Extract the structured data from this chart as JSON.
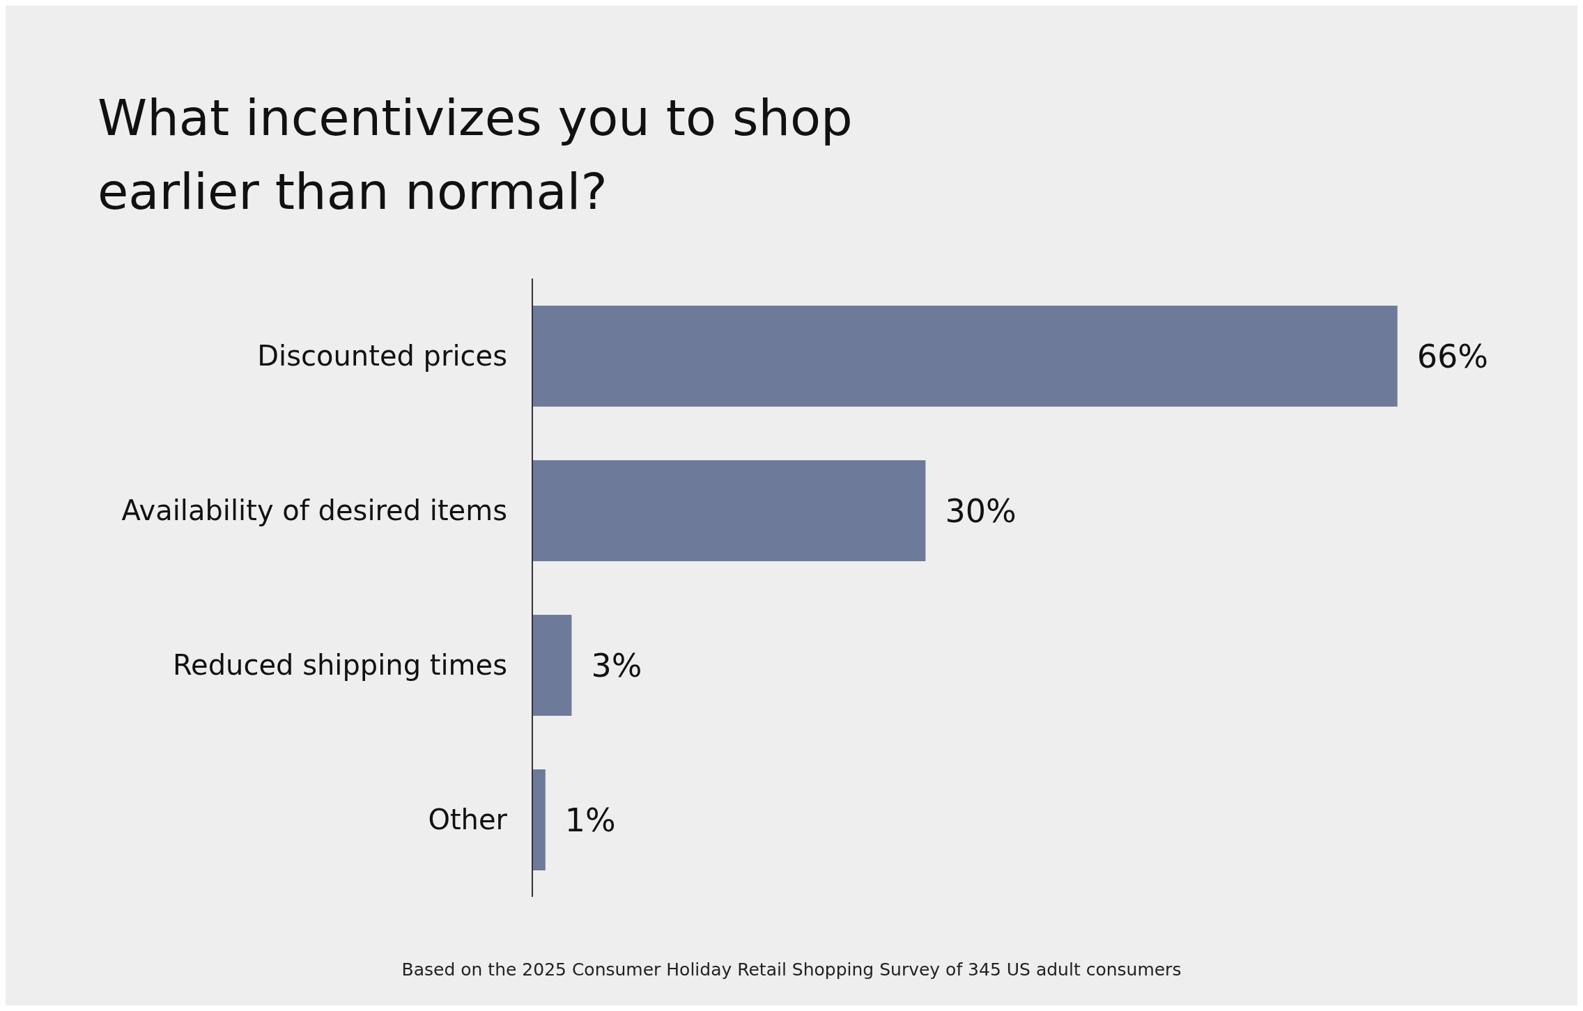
{
  "chart_data": {
    "type": "bar",
    "orientation": "horizontal",
    "title": "What incentivizes you to shop earlier than normal?",
    "categories": [
      "Discounted prices",
      "Availability of desired items",
      "Reduced shipping times",
      "Other"
    ],
    "values": [
      66,
      30,
      3,
      1
    ],
    "value_labels": [
      "66%",
      "30%",
      "3%",
      "1%"
    ],
    "color": "#6e7a9a",
    "tick_labels": "y",
    "annotations": [
      "Based on the 2025 Consumer Holiday Retail Shopping Survey of 345 US adult consumers"
    ]
  }
}
